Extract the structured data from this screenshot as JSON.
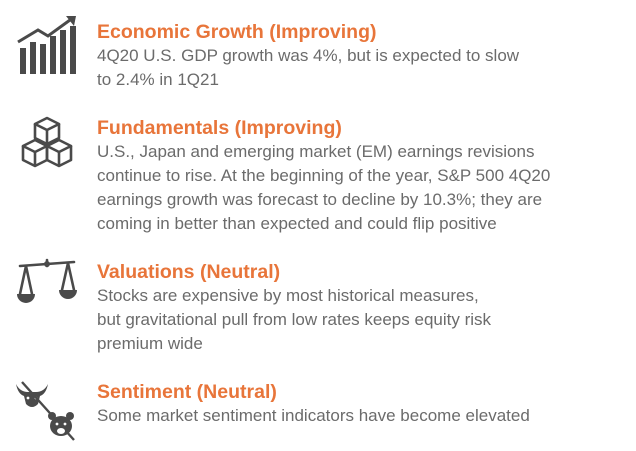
{
  "sections": [
    {
      "icon": "bar-chart-growth-icon",
      "heading": "Economic Growth (Improving)",
      "lines": [
        "4Q20 U.S. GDP growth was 4%, but is expected to slow",
        "to 2.4% in 1Q21"
      ]
    },
    {
      "icon": "stacked-cubes-icon",
      "heading": "Fundamentals (Improving)",
      "lines": [
        "U.S., Japan and emerging market (EM) earnings revisions",
        "continue to rise. At the beginning of the year, S&P 500 4Q20",
        "earnings growth was forecast to decline by 10.3%; they are",
        "coming in better than expected and could flip positive"
      ]
    },
    {
      "icon": "balance-scale-icon",
      "heading": "Valuations (Neutral)",
      "lines": [
        "Stocks are expensive by most historical measures,",
        "but gravitational pull from low rates keeps equity risk",
        "premium wide"
      ]
    },
    {
      "icon": "bull-bear-icon",
      "heading": "Sentiment (Neutral)",
      "lines": [
        "Some market sentiment indicators have become elevated"
      ]
    }
  ],
  "colors": {
    "heading": "#e8753a",
    "body": "#6b6b6b",
    "icon": "#4a4a4a"
  }
}
